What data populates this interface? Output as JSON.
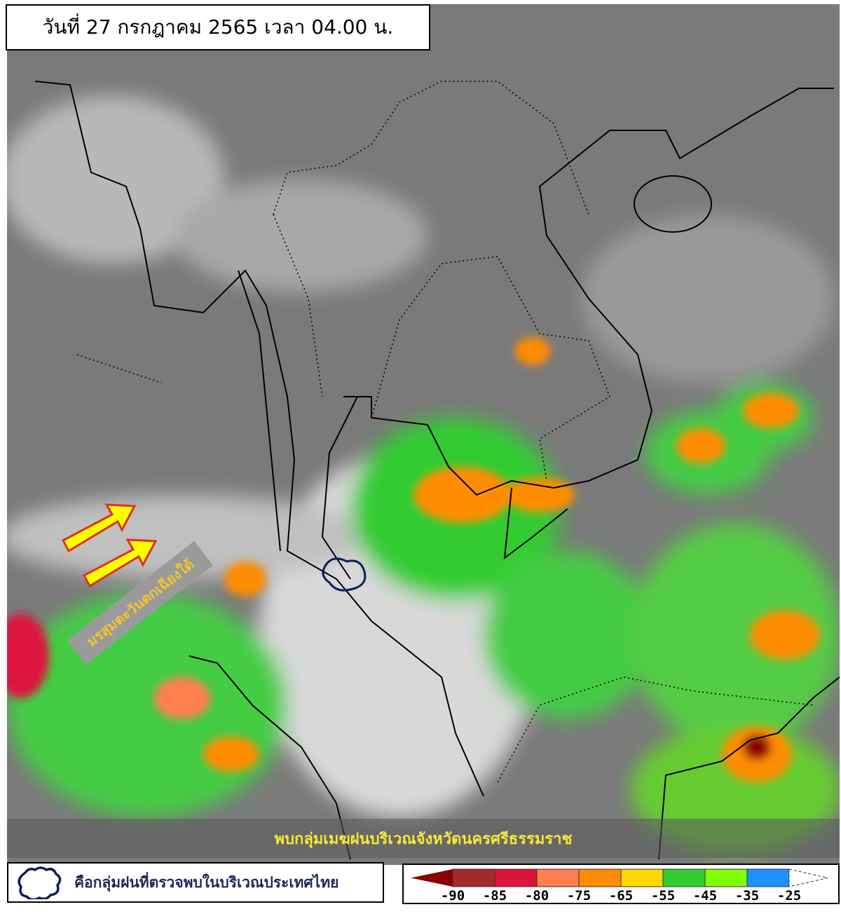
{
  "header": {
    "title": "วันที่ 27 กรกฎาคม 2565 เวลา 04.00 น."
  },
  "annotations": {
    "monsoon_label": "มรสุมตะวันตกเฉียงใต้",
    "banner": "พบกลุ่มเมฆฝนบริเวณจังหวัดนครศรีธรรมราช",
    "arrow_color": "#ffff00",
    "arrow_outline": "#e03020"
  },
  "legend": {
    "cloud_icon": "cloud-outline-icon",
    "text": "คือกลุ่มฝนที่ตรวจพบในบริเวณประเทศไทย"
  },
  "colorbar": {
    "ticks": [
      "-90",
      "-85",
      "-80",
      "-75",
      "-65",
      "-55",
      "-45",
      "-35",
      "-25"
    ],
    "colors": [
      "#8b0000",
      "#a52a2a",
      "#dc143c",
      "#ff7f50",
      "#ff8c00",
      "#ffd700",
      "#32cd32",
      "#7fff00",
      "#1e90ff",
      "#ffffff"
    ]
  }
}
